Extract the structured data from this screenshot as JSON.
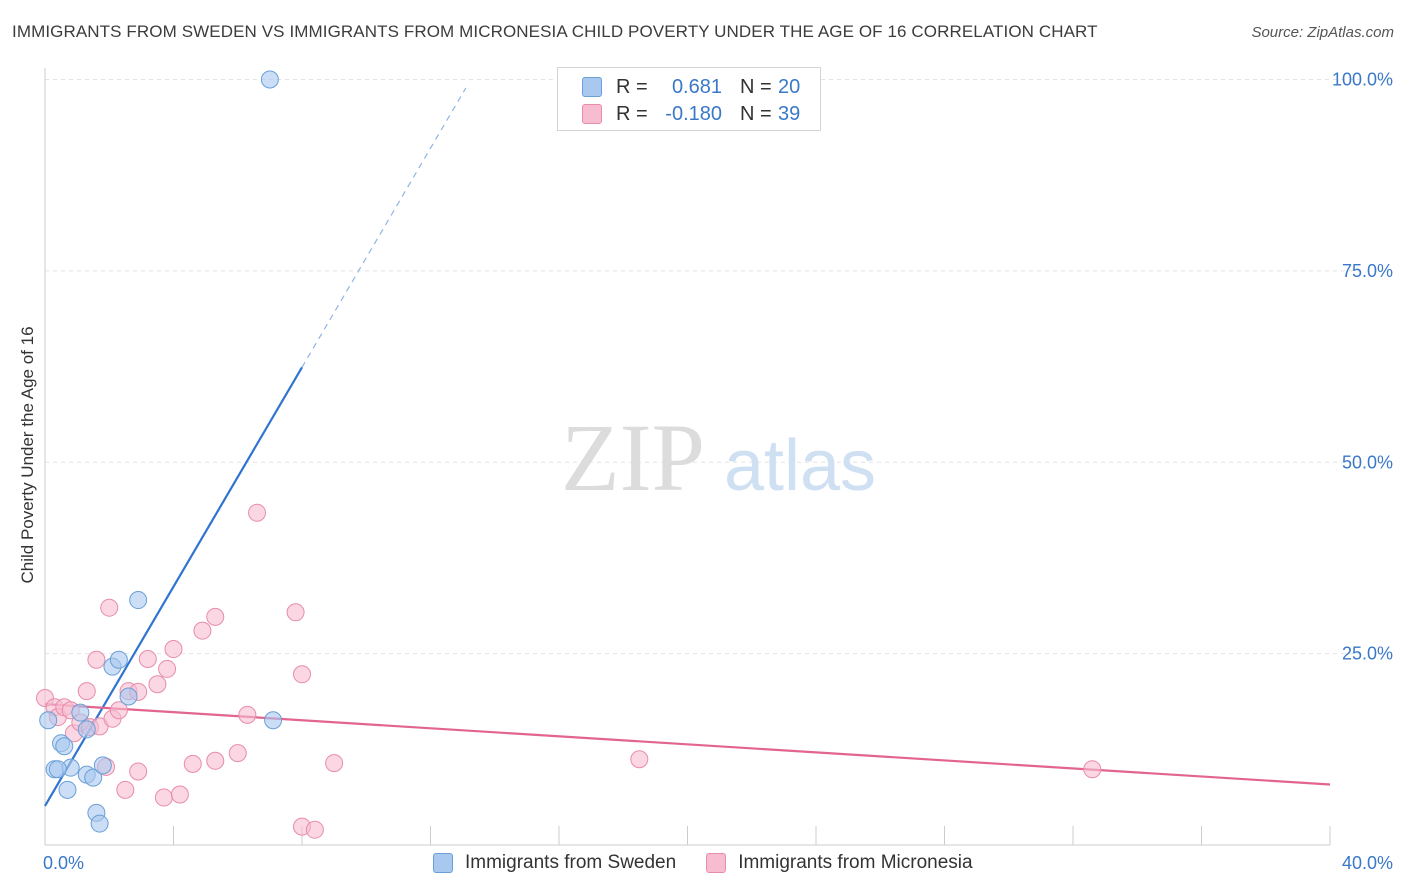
{
  "title": "IMMIGRANTS FROM SWEDEN VS IMMIGRANTS FROM MICRONESIA CHILD POVERTY UNDER THE AGE OF 16 CORRELATION CHART",
  "source": "Source: ZipAtlas.com",
  "watermark": {
    "zip": "ZIP",
    "atlas": "atlas"
  },
  "legend": {
    "rows": [
      {
        "r_label": "R =",
        "r_value": "0.681",
        "n_label": "N =",
        "n_value": "20",
        "color": "#a9c8ef",
        "border": "#6a9fd8"
      },
      {
        "r_label": "R =",
        "r_value": "-0.180",
        "n_label": "N =",
        "n_value": "39",
        "color": "#f7bcd0",
        "border": "#e88cab"
      }
    ]
  },
  "bottom_legend": {
    "sweden": "Immigrants from Sweden",
    "micronesia": "Immigrants from Micronesia"
  },
  "chart_data": {
    "type": "scatter",
    "title": "IMMIGRANTS FROM SWEDEN VS IMMIGRANTS FROM MICRONESIA CHILD POVERTY UNDER THE AGE OF 16 CORRELATION CHART",
    "xlabel": "",
    "ylabel": "Child Poverty Under the Age of 16",
    "xlim": [
      0,
      40
    ],
    "ylim": [
      0,
      102
    ],
    "x_tick_labels": [
      "0.0%",
      "40.0%"
    ],
    "y_ticks": [
      25,
      50,
      75,
      100
    ],
    "y_tick_labels": [
      "25.0%",
      "50.0%",
      "75.0%",
      "100.0%"
    ],
    "grid": true,
    "series": [
      {
        "name": "Immigrants from Sweden",
        "color": "#a9c8ef",
        "stroke": "#6a9fd8",
        "points": [
          [
            0.1,
            16.3
          ],
          [
            0.3,
            9.9
          ],
          [
            0.5,
            13.3
          ],
          [
            0.6,
            12.9
          ],
          [
            0.7,
            7.2
          ],
          [
            0.8,
            10.1
          ],
          [
            1.1,
            17.3
          ],
          [
            1.3,
            9.2
          ],
          [
            1.3,
            15.1
          ],
          [
            1.5,
            8.8
          ],
          [
            1.6,
            4.2
          ],
          [
            1.7,
            2.8
          ],
          [
            1.8,
            10.4
          ],
          [
            2.1,
            23.3
          ],
          [
            2.3,
            24.2
          ],
          [
            2.6,
            19.4
          ],
          [
            2.9,
            32.0
          ],
          [
            7.0,
            100.0
          ],
          [
            7.1,
            16.3
          ],
          [
            0.4,
            9.9
          ]
        ],
        "trend": {
          "x": [
            0,
            8.0
          ],
          "y": [
            5.1,
            62.4
          ]
        },
        "trend_ext": {
          "x": [
            8.0,
            13.1
          ],
          "y": [
            62.4,
            98.9
          ]
        }
      },
      {
        "name": "Immigrants from Micronesia",
        "color": "#f7bcd0",
        "stroke": "#e88cab",
        "points": [
          [
            0.0,
            19.2
          ],
          [
            0.3,
            18.0
          ],
          [
            0.4,
            16.7
          ],
          [
            0.6,
            18.0
          ],
          [
            0.8,
            17.6
          ],
          [
            0.9,
            14.6
          ],
          [
            1.1,
            16.0
          ],
          [
            1.3,
            20.1
          ],
          [
            1.4,
            15.4
          ],
          [
            1.6,
            24.2
          ],
          [
            1.7,
            15.5
          ],
          [
            1.9,
            10.2
          ],
          [
            2.0,
            31.0
          ],
          [
            2.1,
            16.5
          ],
          [
            2.3,
            17.6
          ],
          [
            2.5,
            7.2
          ],
          [
            2.6,
            20.1
          ],
          [
            2.9,
            20.0
          ],
          [
            2.9,
            9.6
          ],
          [
            3.2,
            24.3
          ],
          [
            3.5,
            21.0
          ],
          [
            3.7,
            6.2
          ],
          [
            3.8,
            23.0
          ],
          [
            4.0,
            25.6
          ],
          [
            4.2,
            6.6
          ],
          [
            4.6,
            10.6
          ],
          [
            4.9,
            28.0
          ],
          [
            5.3,
            11.0
          ],
          [
            5.3,
            29.8
          ],
          [
            6.0,
            12.0
          ],
          [
            6.3,
            17.0
          ],
          [
            6.6,
            43.4
          ],
          [
            7.8,
            30.4
          ],
          [
            8.0,
            22.3
          ],
          [
            8.0,
            2.4
          ],
          [
            8.4,
            2.0
          ],
          [
            9.0,
            10.7
          ],
          [
            18.5,
            11.2
          ],
          [
            32.6,
            9.9
          ]
        ],
        "trend": {
          "x": [
            0,
            40
          ],
          "y": [
            18.4,
            7.9
          ]
        }
      }
    ]
  }
}
